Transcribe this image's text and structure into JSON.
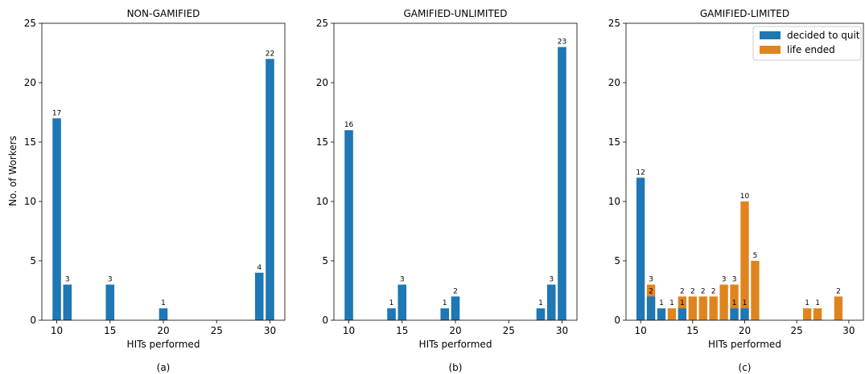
{
  "figure": {
    "ylabel": "No. of Workers"
  },
  "colors": {
    "blue": "#1f77b4",
    "orange": "#e0841e",
    "axis": "#000000"
  },
  "chart_data": [
    {
      "type": "bar",
      "title": "NON-GAMIFIED",
      "xlabel": "HITs performed",
      "caption": "(a)",
      "xlim": [
        8.6,
        31.4
      ],
      "ylim": [
        0,
        25
      ],
      "xticks": [
        10,
        15,
        20,
        25,
        30
      ],
      "yticks": [
        0,
        5,
        10,
        15,
        20,
        25
      ],
      "legend": null,
      "series": [
        {
          "color": "#1f77b4",
          "points": [
            {
              "x": 10,
              "y": 17,
              "label": "17"
            },
            {
              "x": 11,
              "y": 3,
              "label": "3"
            },
            {
              "x": 15,
              "y": 3,
              "label": "3"
            },
            {
              "x": 20,
              "y": 1,
              "label": "1"
            },
            {
              "x": 29,
              "y": 4,
              "label": "4"
            },
            {
              "x": 30,
              "y": 22,
              "label": "22"
            }
          ]
        }
      ]
    },
    {
      "type": "bar",
      "title": "GAMIFIED-UNLIMITED",
      "xlabel": "HITs performed",
      "caption": "(b)",
      "xlim": [
        8.6,
        31.4
      ],
      "ylim": [
        0,
        25
      ],
      "xticks": [
        10,
        15,
        20,
        25,
        30
      ],
      "yticks": [
        0,
        5,
        10,
        15,
        20,
        25
      ],
      "legend": null,
      "series": [
        {
          "color": "#1f77b4",
          "points": [
            {
              "x": 10,
              "y": 16,
              "label": "16"
            },
            {
              "x": 14,
              "y": 1,
              "label": "1"
            },
            {
              "x": 15,
              "y": 3,
              "label": "3"
            },
            {
              "x": 19,
              "y": 1,
              "label": "1"
            },
            {
              "x": 20,
              "y": 2,
              "label": "2"
            },
            {
              "x": 28,
              "y": 1,
              "label": "1"
            },
            {
              "x": 29,
              "y": 3,
              "label": "3"
            },
            {
              "x": 30,
              "y": 23,
              "label": "23"
            }
          ]
        }
      ]
    },
    {
      "type": "bar",
      "title": "GAMIFIED-LIMITED",
      "xlabel": "HITs performed",
      "caption": "(c)",
      "xlim": [
        8.6,
        31.4
      ],
      "ylim": [
        0,
        25
      ],
      "xticks": [
        10,
        15,
        20,
        25,
        30
      ],
      "yticks": [
        0,
        5,
        10,
        15,
        20,
        25
      ],
      "legend": {
        "position": "top-right"
      },
      "series": [
        {
          "name": "life ended",
          "color": "#e0841e",
          "points": [
            {
              "x": 11,
              "y": 3,
              "label": "3"
            },
            {
              "x": 13,
              "y": 1,
              "label": "1"
            },
            {
              "x": 14,
              "y": 2,
              "label": "2"
            },
            {
              "x": 15,
              "y": 2,
              "label": "2"
            },
            {
              "x": 16,
              "y": 2,
              "label": "2"
            },
            {
              "x": 17,
              "y": 2,
              "label": "2"
            },
            {
              "x": 18,
              "y": 3,
              "label": "3"
            },
            {
              "x": 19,
              "y": 3,
              "label": "3"
            },
            {
              "x": 20,
              "y": 10,
              "label": "10"
            },
            {
              "x": 21,
              "y": 5,
              "label": "5"
            },
            {
              "x": 26,
              "y": 1,
              "label": "1"
            },
            {
              "x": 27,
              "y": 1,
              "label": "1"
            },
            {
              "x": 29,
              "y": 2,
              "label": "2"
            }
          ]
        },
        {
          "name": "decided to quit",
          "color": "#1f77b4",
          "points": [
            {
              "x": 10,
              "y": 12,
              "label": "12"
            },
            {
              "x": 11,
              "y": 2,
              "label": "2"
            },
            {
              "x": 12,
              "y": 1,
              "label": "1"
            },
            {
              "x": 14,
              "y": 1,
              "label": "1"
            },
            {
              "x": 19,
              "y": 1,
              "label": "1"
            },
            {
              "x": 20,
              "y": 1,
              "label": "1"
            }
          ]
        }
      ]
    }
  ]
}
